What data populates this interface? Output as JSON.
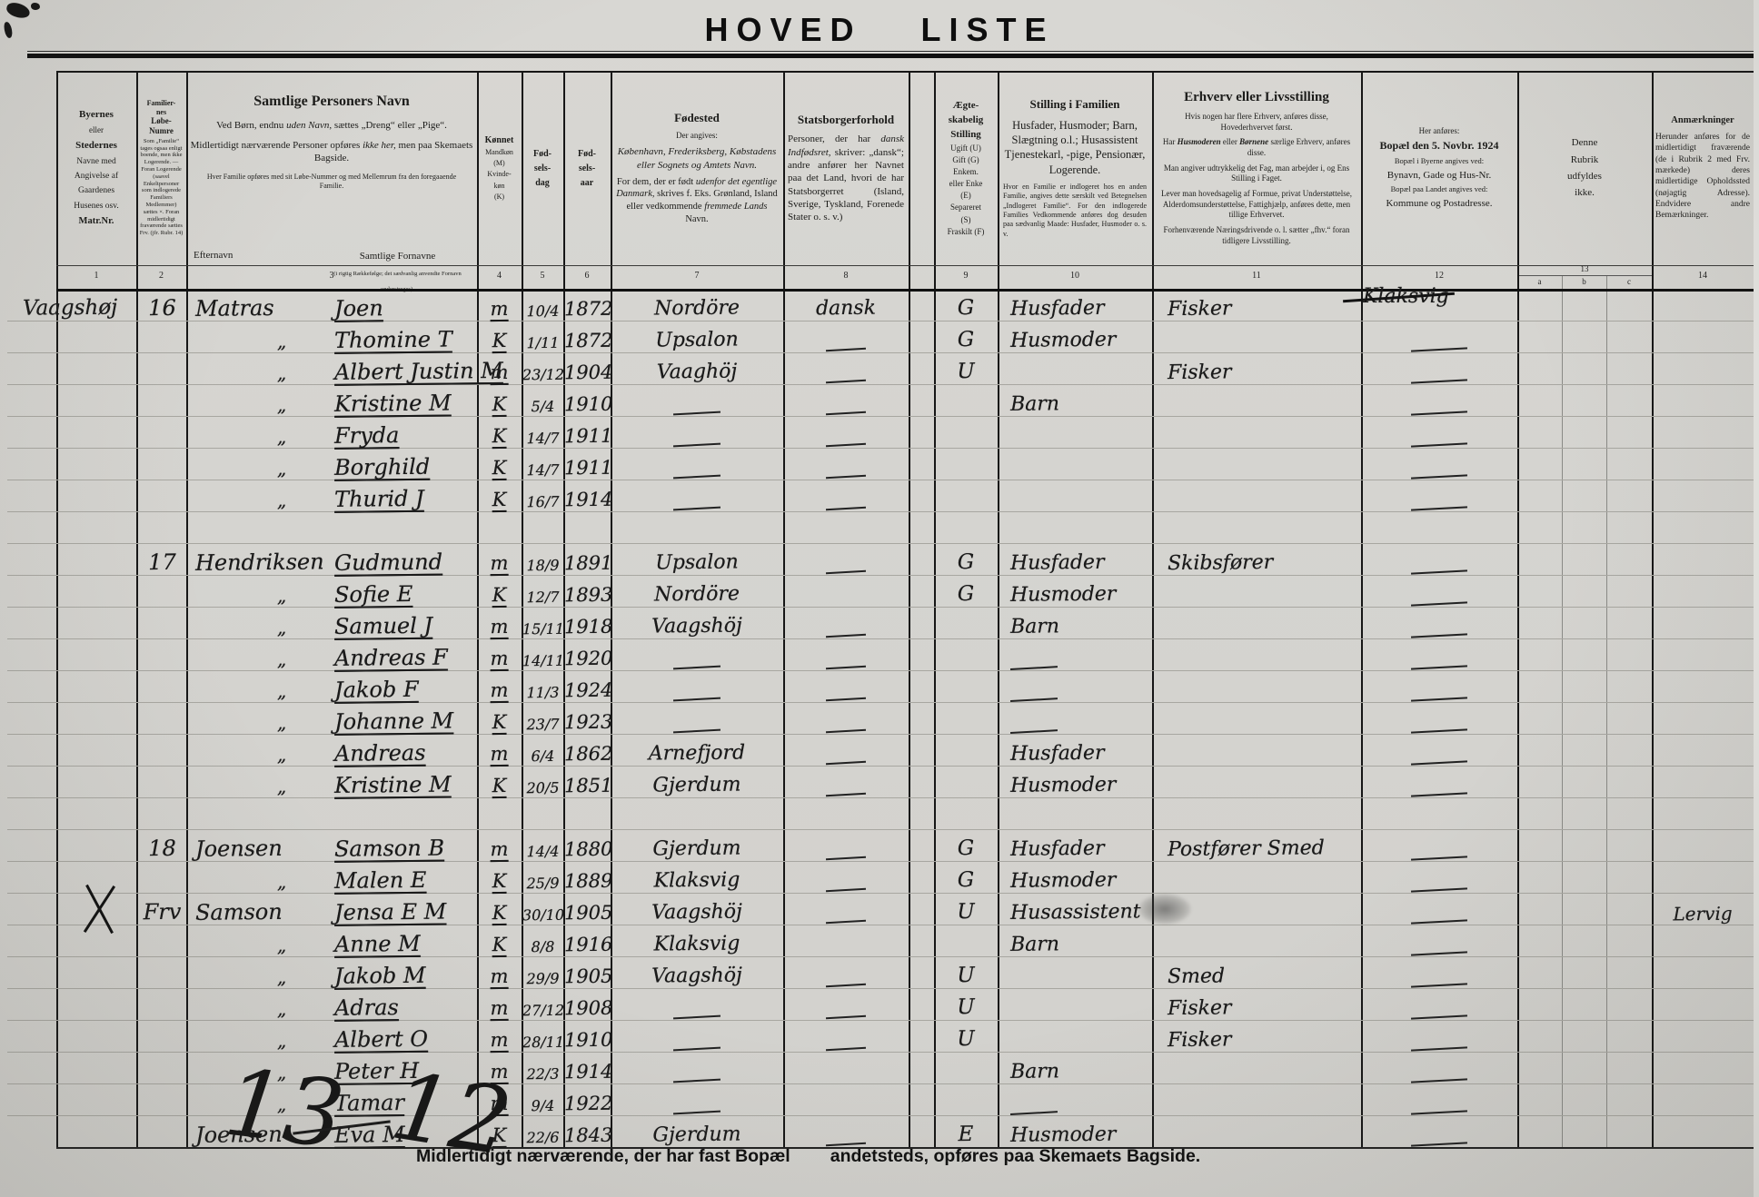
{
  "title": "HOVED LISTE",
  "columns": {
    "numbers": [
      "1",
      "2",
      "3",
      "4",
      "5",
      "6",
      "7",
      "8",
      "9",
      "10",
      "11",
      "12",
      "13",
      "a",
      "b",
      "c",
      "14"
    ],
    "c1": {
      "l1": "Byernes",
      "l2": "eller",
      "l3": "Stedernes",
      "l4": "Navne med",
      "l5": "Angivelse af",
      "l6": "Gaardenes",
      "l7": "Husenes osv.",
      "l8": "Matr.Nr."
    },
    "c2": {
      "t1": "Familier-",
      "t2": "nes",
      "t3": "Løbe-",
      "t4": "Numre",
      "fine": "Som „Familie“ tages ogsaa enligt boende, men ikke Logerende. — Foran Logerende (saavel Enkeltpersoner som indlogerede Familiers Medlemmer) sættes ×. Foran midlertidigt fraværende sættes Frv. (jfr. Rubr. 14)"
    },
    "c3": {
      "title": "Samtlige Personers Navn",
      "p1a": "Ved Børn, endnu ",
      "p1b": "uden Navn",
      "p1c": ", sættes „Dreng“ eller „Pige“.",
      "p2a": "Midlertidigt nærværende Personer opføres ",
      "p2b": "ikke her,",
      "p2c": " men paa Skemaets Bagside.",
      "p3": "Hver Familie opføres med sit Løbe-Nummer og med Mellemrum fra den foregaaende Familie.",
      "sub1": "Efternavn",
      "sub2": "Samtlige Fornavne",
      "sub2b": "(i rigtig Rækkefølge; det sædvanlig anvendte Fornavn understreges)."
    },
    "c4": {
      "title": "Kønnet",
      "p1": "Mandkøn",
      "p2": "(M)",
      "p3": "Kvinde-",
      "p4": "køn",
      "p5": "(K)"
    },
    "c5": {
      "l1": "Fød-",
      "l2": "sels-",
      "l3": "dag"
    },
    "c6": {
      "l1": "Fød-",
      "l2": "sels-",
      "l3": "aar"
    },
    "c7": {
      "title": "Fødested",
      "p1": "Der angives:",
      "p2": "København, Frederiksberg, Købstadens eller Sognets og Amtets Navn.",
      "p3a": "For dem, der er født ",
      "p3b": "udenfor det egentlige Danmark,",
      "p3c": " skrives f. Eks. Grønland, Island eller vedkommende ",
      "p3d": "fremmede Lands",
      "p3e": " Navn."
    },
    "c8": {
      "title": "Statsborgerforhold",
      "p1a": "Personer, der har ",
      "p1b": "dansk Indfødsret,",
      "p1c": " skriver: „dansk“; andre anfører her Navnet paa det Land, hvori de har Statsborgerret (Island, Sverige, Tyskland, Forenede Stater o. s. v.)"
    },
    "c9": {
      "t1": "Ægte-",
      "t2": "skabelig",
      "t3": "Stilling",
      "p1": "Ugift (U)",
      "p2": "Gift (G)",
      "p3": "Enkem.",
      "p4": "eller Enke",
      "p5": "(E)",
      "p6": "Separeret",
      "p7": "(S)",
      "p8": "Fraskilt (F)"
    },
    "c10": {
      "title": "Stilling i Familien",
      "p1": "Husfader, Husmoder; Barn, Slægtning o.l.; Husassistent Tjenestekarl, -pige, Pensionær, Logerende.",
      "p2": "Hvor en Familie er indlogeret hos en anden Familie, angives dette særskilt ved Betegnelsen „Indlogeret Familie“. For den indlogerede Families Vedkommende anføres dog desuden paa sædvanlig Maade: Husfader, Husmoder o. s. v."
    },
    "c11": {
      "title": "Erhverv eller Livsstilling",
      "p1": "Hvis nogen har flere Erhverv, anføres disse, Hovederhvervet først.",
      "p2a": "Har ",
      "p2b": "Husmoderen",
      "p2c": " eller ",
      "p2d": "Børnene",
      "p2e": " særlige Erhverv, anføres disse.",
      "p3": "Man angiver udtrykkelig det Fag, man arbejder i, og Ens Stilling i Faget.",
      "p4": "Lever man hovedsagelig af Formue, privat Understøttelse, Alderdomsunderstøttelse, Fattighjælp, anføres dette, men tillige Erhvervet.",
      "p5": "Forhenværende Næringsdrivende o. l. sætter „fhv.“ foran tidligere Livsstilling."
    },
    "c12": {
      "p0": "Her anføres:",
      "title": "Bopæl den 5. Novbr. 1924",
      "p1": "Bopæl i Byerne angives ved:",
      "p2": "Bynavn, Gade og Hus-Nr.",
      "p3": "Bopæl paa Landet angives ved:",
      "p4": "Kommune og Postadresse."
    },
    "c13": {
      "p1": "Denne",
      "p2": "Rubrik",
      "p3": "udfyldes",
      "p4": "ikke."
    },
    "c14": {
      "title": "Anmærkninger",
      "p1": "Herunder anføres for de midlertidigt fraværende (de i Rubrik 2 med Frv. mærkede) deres midlertidige Opholdssted (nøjagtig Adresse). Endvidere andre Bemærkninger."
    }
  },
  "rows": [
    {
      "place": "Vaagshøj",
      "nr": "16",
      "eft": "Matras",
      "forn": "Joen",
      "kon": "m",
      "dag": "10/4",
      "aar": "1872",
      "sted": "Nordöre",
      "stats": "dansk",
      "aegte": "G",
      "stil": "Husfader",
      "erh": "Fisker",
      "bop": "Klaksvig",
      "struck": true
    },
    {
      "ditto": "„",
      "forn": "Thomine T",
      "kon": "K",
      "dag": "1/11",
      "aar": "1872",
      "sted": "Upsalon",
      "stats": "—",
      "aegte": "G",
      "stil": "Husmoder",
      "bop": "—"
    },
    {
      "ditto": "„",
      "forn": "Albert Justin M",
      "kon": "m",
      "dag": "23/12",
      "aar": "1904",
      "sted": "Vaaghöj",
      "stats": "—",
      "aegte": "U",
      "erh": "Fisker",
      "bop": "—"
    },
    {
      "ditto": "„",
      "forn": "Kristine M",
      "kon": "K",
      "dag": "5/4",
      "aar": "1910",
      "sted": "—",
      "stats": "—",
      "stil": "Barn",
      "bop": "—"
    },
    {
      "ditto": "„",
      "forn": "Fryda",
      "kon": "K",
      "dag": "14/7",
      "aar": "1911",
      "sted": "—",
      "stats": "—",
      "bop": "—"
    },
    {
      "ditto": "„",
      "forn": "Borghild",
      "kon": "K",
      "dag": "14/7",
      "aar": "1911",
      "sted": "—",
      "stats": "—",
      "bop": "—"
    },
    {
      "ditto": "„",
      "forn": "Thurid J",
      "kon": "K",
      "dag": "16/7",
      "aar": "1914",
      "sted": "—",
      "stats": "—",
      "bop": "—"
    },
    {},
    {
      "nr": "17",
      "eft": "Hendriksen",
      "forn": "Gudmund",
      "kon": "m",
      "dag": "18/9",
      "aar": "1891",
      "sted": "Upsalon",
      "stats": "—",
      "aegte": "G",
      "stil": "Husfader",
      "erh": "Skibsfører",
      "bop": "—"
    },
    {
      "ditto": "„",
      "forn": "Sofie E",
      "kon": "K",
      "dag": "12/7",
      "aar": "1893",
      "sted": "Nordöre",
      "aegte": "G",
      "stil": "Husmoder",
      "bop": "—"
    },
    {
      "ditto": "„",
      "forn": "Samuel J",
      "kon": "m",
      "dag": "15/11",
      "aar": "1918",
      "sted": "Vaagshöj",
      "stats": "—",
      "stil": "Barn",
      "bop": "—"
    },
    {
      "ditto": "„",
      "forn": "Andreas F",
      "kon": "m",
      "dag": "14/11",
      "aar": "1920",
      "sted": "—",
      "stats": "—",
      "stil": "—",
      "bop": "—"
    },
    {
      "ditto": "„",
      "forn": "Jakob F",
      "kon": "m",
      "dag": "11/3",
      "aar": "1924",
      "sted": "—",
      "stats": "—",
      "stil": "—",
      "bop": "—"
    },
    {
      "ditto": "„",
      "forn": "Johanne M",
      "kon": "K",
      "dag": "23/7",
      "aar": "1923",
      "sted": "—",
      "stats": "—",
      "stil": "—",
      "bop": "—"
    },
    {
      "ditto": "„",
      "forn": "Andreas",
      "kon": "m",
      "dag": "6/4",
      "aar": "1862",
      "sted": "Arnefjord",
      "stats": "—",
      "stil": "Husfader",
      "bop": "—"
    },
    {
      "ditto": "„",
      "forn": "Kristine M",
      "kon": "K",
      "dag": "20/5",
      "aar": "1851",
      "sted": "Gjerdum",
      "stats": "—",
      "stil": "Husmoder",
      "bop": "—"
    },
    {},
    {
      "nr": "18",
      "eft": "Joensen",
      "forn": "Samson B",
      "kon": "m",
      "dag": "14/4",
      "aar": "1880",
      "sted": "Gjerdum",
      "stats": "—",
      "aegte": "G",
      "stil": "Husfader",
      "erh": "Postfører Smed",
      "bop": "—"
    },
    {
      "ditto": "„",
      "forn": "Malen E",
      "kon": "K",
      "dag": "25/9",
      "aar": "1889",
      "sted": "Klaksvig",
      "stats": "—",
      "aegte": "G",
      "stil": "Husmoder",
      "bop": "—"
    },
    {
      "mark": true,
      "nr": "Frv",
      "eft": "Samson",
      "forn": "Jensa E M",
      "kon": "K",
      "dag": "30/10",
      "aar": "1905",
      "sted": "Vaagshöj",
      "stats": "—",
      "aegte": "U",
      "stil": "Husassistent",
      "smudge": true,
      "bop": "—",
      "anm": "Lervig"
    },
    {
      "ditto": "„",
      "forn": "Anne M",
      "kon": "K",
      "dag": "8/8",
      "aar": "1916",
      "sted": "Klaksvig",
      "stil": "Barn",
      "bop": "—"
    },
    {
      "ditto": "„",
      "forn": "Jakob M",
      "kon": "m",
      "dag": "29/9",
      "aar": "1905",
      "sted": "Vaagshöj",
      "stats": "—",
      "aegte": "U",
      "erh": "Smed",
      "bop": "—"
    },
    {
      "ditto": "„",
      "forn": "Adras",
      "kon": "m",
      "dag": "27/12",
      "aar": "1908",
      "sted": "—",
      "stats": "—",
      "aegte": "U",
      "erh": "Fisker",
      "bop": "—"
    },
    {
      "ditto": "„",
      "forn": "Albert O",
      "kon": "m",
      "dag": "28/11",
      "aar": "1910",
      "sted": "—",
      "stats": "—",
      "aegte": "U",
      "erh": "Fisker",
      "bop": "—"
    },
    {
      "ditto": "„",
      "forn": "Peter H",
      "kon": "m",
      "dag": "22/3",
      "aar": "1914",
      "sted": "—",
      "stil": "Barn",
      "bop": "—"
    },
    {
      "ditto": "„",
      "forn": "Tamar",
      "kon": "m",
      "dag": "9/4",
      "aar": "1922",
      "sted": "—",
      "stil": "—",
      "bop": "—"
    },
    {
      "eft": "Joensen",
      "forn": "Eva M",
      "kon": "K",
      "dag": "22/6",
      "aar": "1843",
      "sted": "Gjerdum",
      "stats": "—",
      "aegte": "E",
      "stil": "Husmoder",
      "bop": "—"
    }
  ],
  "footer": {
    "tally_left": "13",
    "tally_right": "12",
    "note1": "Midlertidigt nærværende, der har fast Bopæl",
    "note2": "andetsteds, opføres paa Skemaets Bagside."
  }
}
